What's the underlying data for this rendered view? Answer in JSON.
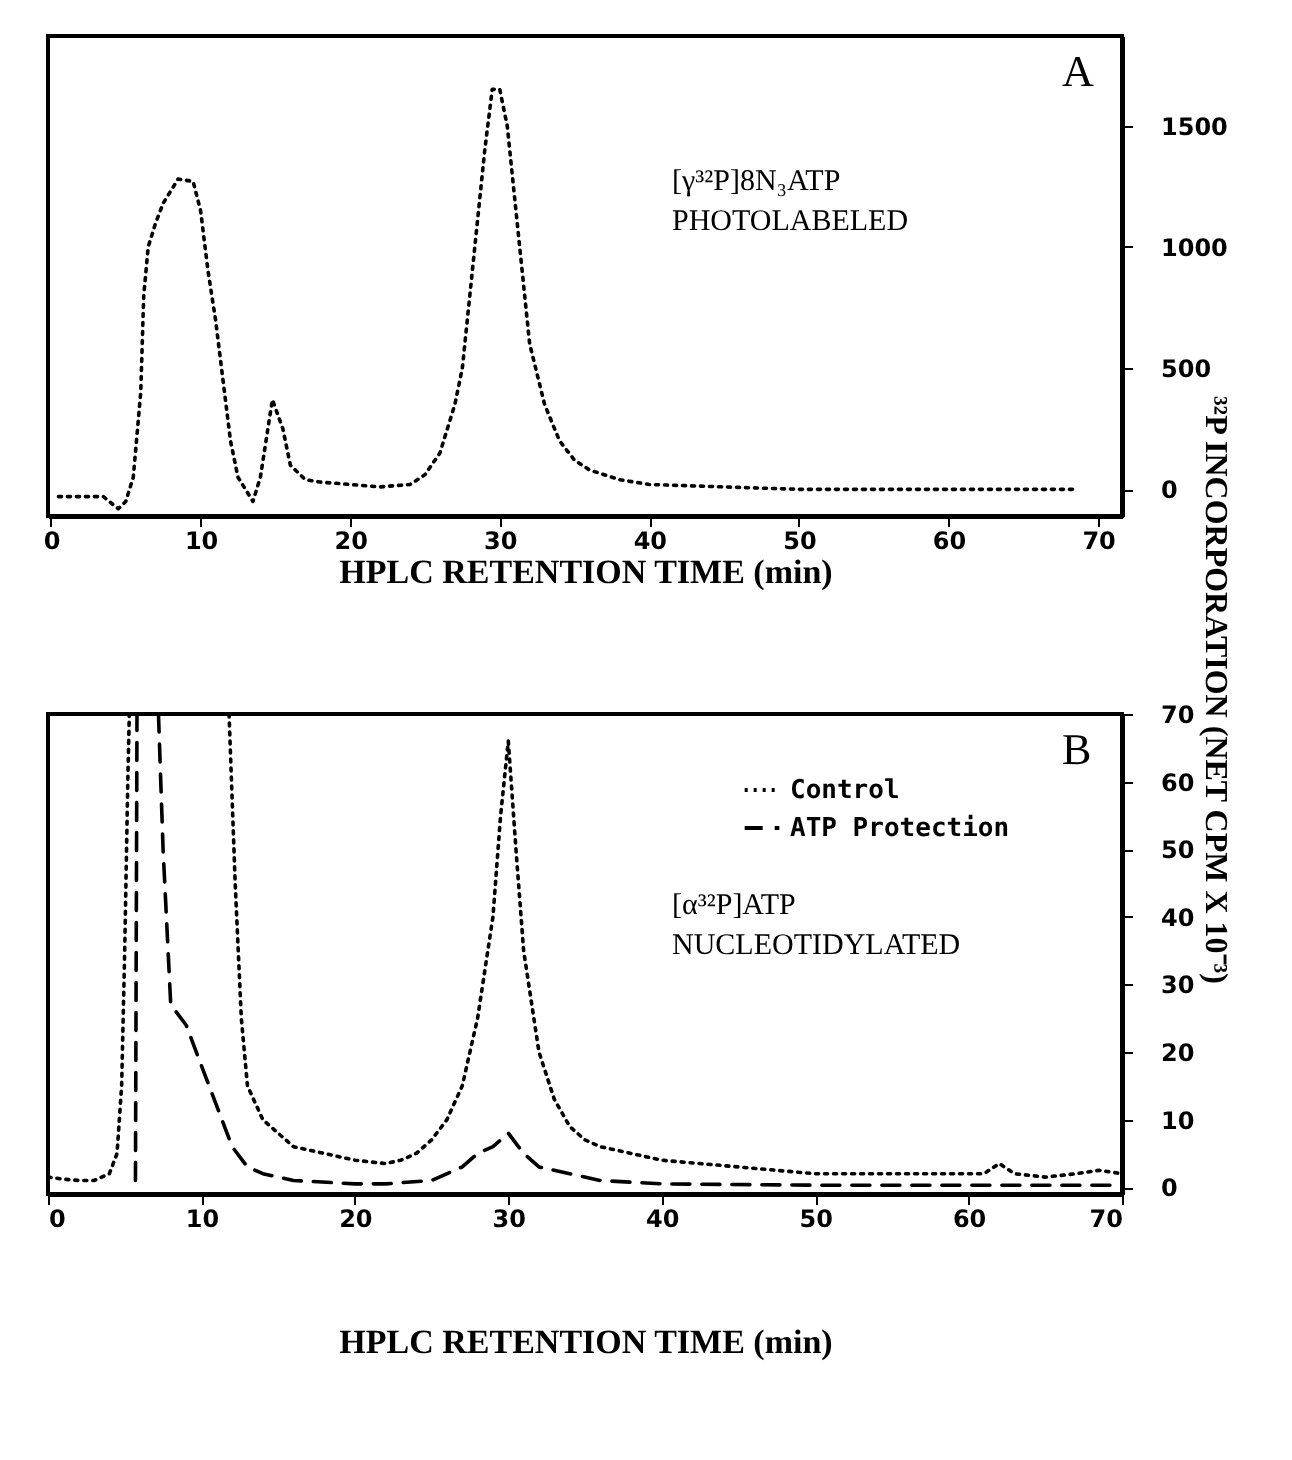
{
  "chart_data": [
    {
      "type": "line",
      "xlabel": "HPLC RETENTION TIME (min)",
      "ylabel": "³²P INCORPORATION (NET CPM X 10⁻³)",
      "annotations": [
        "A",
        "[γ³²P]8N₃ATP",
        "PHOTOLABELED"
      ],
      "xlim": [
        -0.2,
        71.6
      ],
      "ylim": [
        -110,
        1870
      ],
      "xticks": [
        0,
        10,
        20,
        30,
        40,
        50,
        60,
        70
      ],
      "yticks": [
        0,
        500,
        1000,
        1500
      ],
      "grid": false,
      "marker": "none",
      "series": [
        {
          "color": "#000000",
          "line_style": "dotted",
          "x": [
            0.5,
            2,
            3.5,
            4.5,
            5,
            5.5,
            6,
            6.2,
            6.5,
            7,
            7.5,
            8,
            8.5,
            9.5,
            10,
            10.5,
            11,
            11.5,
            12,
            12.5,
            13.5,
            14,
            14.5,
            14.8,
            15.5,
            16,
            17,
            18,
            20,
            22,
            24,
            25,
            26,
            27,
            27.5,
            28,
            28.5,
            29,
            29.5,
            30,
            30.5,
            31,
            31.5,
            32,
            33,
            34,
            35,
            36,
            38,
            40,
            45,
            50,
            55,
            60,
            65,
            68.5
          ],
          "values": [
            -30,
            -30,
            -30,
            -80,
            -50,
            50,
            400,
            800,
            1000,
            1100,
            1180,
            1230,
            1280,
            1270,
            1150,
            900,
            700,
            450,
            200,
            50,
            -50,
            50,
            250,
            370,
            250,
            100,
            40,
            30,
            20,
            10,
            20,
            60,
            150,
            350,
            500,
            800,
            1100,
            1400,
            1650,
            1650,
            1500,
            1200,
            900,
            600,
            350,
            200,
            120,
            80,
            40,
            20,
            10,
            0,
            0,
            0,
            0,
            0
          ]
        }
      ]
    },
    {
      "type": "line",
      "xlabel": "HPLC RETENTION TIME (min)",
      "annotations": [
        "B",
        "[α³²P]ATP",
        "NUCLEOTIDYLATED"
      ],
      "xlim": [
        0,
        70
      ],
      "ylim": [
        -1,
        70
      ],
      "xticks": [
        0,
        10,
        20,
        30,
        40,
        50,
        60,
        70
      ],
      "yticks": [
        0,
        10,
        20,
        30,
        40,
        50,
        60,
        70
      ],
      "grid": false,
      "legend": "top right",
      "marker": "none",
      "series": [
        {
          "name": "Control",
          "color": "#000000",
          "line_style": "dotted",
          "x": [
            0,
            1,
            2,
            3,
            4,
            4.5,
            4.8,
            5,
            5.2,
            5.3,
            8,
            11.8,
            12.2,
            12.6,
            13,
            14,
            15,
            16,
            18,
            20,
            22,
            23,
            24,
            25,
            26,
            27,
            28,
            29,
            29.5,
            30,
            30.5,
            31,
            32,
            33,
            34,
            35,
            36,
            38,
            40,
            45,
            50,
            55,
            60,
            61,
            62,
            63,
            65,
            67,
            68.5,
            70
          ],
          "values": [
            1.5,
            1.2,
            1,
            1,
            2,
            5,
            15,
            35,
            60,
            70,
            null,
            70,
            45,
            25,
            15,
            10,
            8,
            6,
            5,
            4,
            3.5,
            4,
            5,
            7,
            10,
            15,
            25,
            40,
            55,
            66,
            50,
            35,
            20,
            13,
            9,
            7,
            6,
            5,
            4,
            3,
            2,
            2,
            2,
            2,
            3.5,
            2,
            1.5,
            2,
            2.5,
            2
          ]
        },
        {
          "name": "ATP Protection",
          "color": "#000000",
          "line_style": "dashed",
          "x": [
            5.7,
            5.8,
            6.4,
            7.2,
            7.5,
            8,
            9,
            10,
            11,
            12,
            13,
            14,
            16,
            20,
            22,
            25,
            27,
            28,
            29,
            30,
            31,
            32,
            34,
            36,
            40,
            50,
            60,
            70
          ],
          "values": [
            1,
            70,
            null,
            70,
            50,
            27,
            24,
            18,
            12,
            6,
            3,
            2,
            1,
            0.5,
            0.5,
            1,
            3,
            5,
            6,
            8,
            5,
            3,
            2,
            1,
            0.5,
            0.3,
            0.3,
            0.3
          ]
        }
      ]
    }
  ]
}
